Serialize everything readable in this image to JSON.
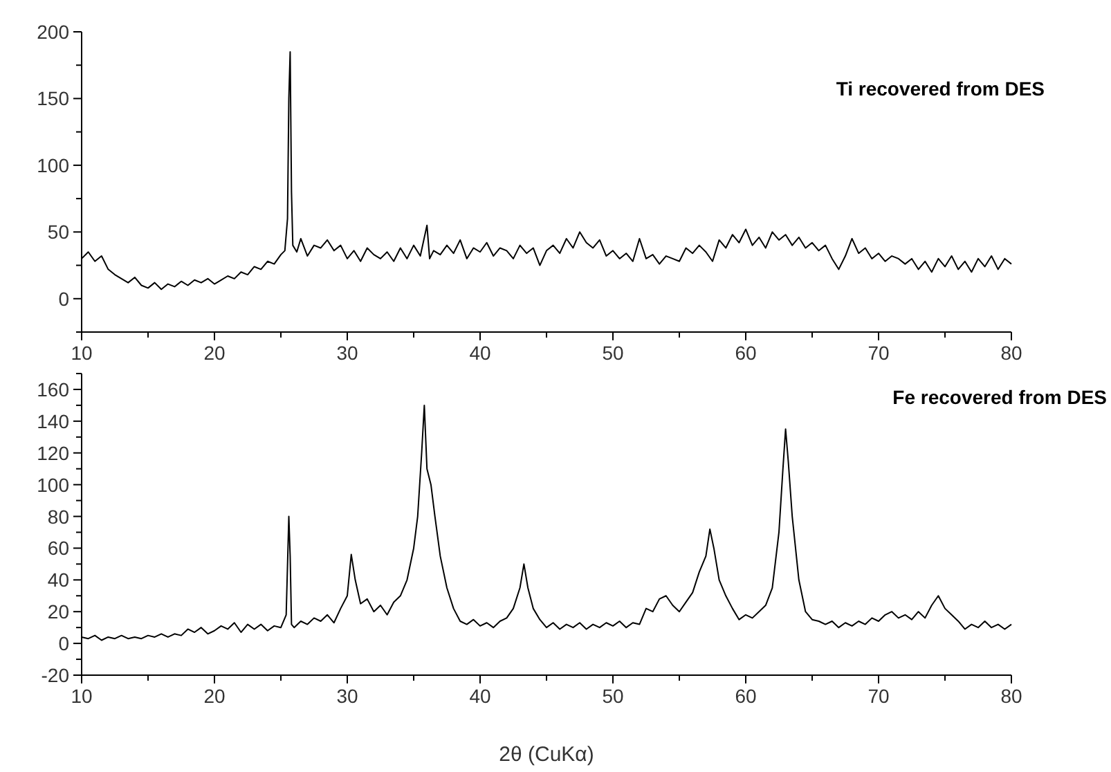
{
  "chart_data": [
    {
      "type": "line",
      "title": "Ti recovered from DES",
      "xlim": [
        10,
        80
      ],
      "ylim": [
        -25,
        200
      ],
      "xticks": [
        10,
        {
          "value": 15,
          "label": null
        },
        20,
        {
          "value": 25,
          "label": null
        },
        30,
        {
          "value": 35,
          "label": null
        },
        40,
        {
          "value": 45,
          "label": null
        },
        50,
        {
          "value": 55,
          "label": null
        },
        60,
        {
          "value": 65,
          "label": null
        },
        70,
        {
          "value": 75,
          "label": null
        },
        80
      ],
      "yticks": [
        {
          "value": -25,
          "label": null
        },
        0,
        {
          "value": 25,
          "label": null
        },
        50,
        {
          "value": 75,
          "label": null
        },
        100,
        {
          "value": 125,
          "label": null
        },
        150,
        {
          "value": 175,
          "label": null
        },
        200
      ],
      "grid": false,
      "series": [
        {
          "color": "#000000",
          "x": [
            10,
            10.5,
            11,
            11.5,
            12,
            12.5,
            13,
            13.5,
            14,
            14.5,
            15,
            15.5,
            16,
            16.5,
            17,
            17.5,
            18,
            18.5,
            19,
            19.5,
            20,
            20.5,
            21,
            21.5,
            22,
            22.5,
            23,
            23.5,
            24,
            24.5,
            25,
            25.3,
            25.5,
            25.6,
            25.7,
            25.8,
            25.9,
            26.2,
            26.5,
            27,
            27.5,
            28,
            28.5,
            29,
            29.5,
            30,
            30.5,
            31,
            31.5,
            32,
            32.5,
            33,
            33.5,
            34,
            34.5,
            35,
            35.5,
            36,
            36.2,
            36.5,
            37,
            37.5,
            38,
            38.5,
            39,
            39.5,
            40,
            40.5,
            41,
            41.5,
            42,
            42.5,
            43,
            43.5,
            44,
            44.5,
            45,
            45.5,
            46,
            46.5,
            47,
            47.5,
            48,
            48.5,
            49,
            49.5,
            50,
            50.5,
            51,
            51.5,
            52,
            52.5,
            53,
            53.5,
            54,
            54.5,
            55,
            55.5,
            56,
            56.5,
            57,
            57.5,
            58,
            58.5,
            59,
            59.5,
            60,
            60.5,
            61,
            61.5,
            62,
            62.5,
            63,
            63.5,
            64,
            64.5,
            65,
            65.5,
            66,
            66.5,
            67,
            67.5,
            68,
            68.5,
            69,
            69.5,
            70,
            70.5,
            71,
            71.5,
            72,
            72.5,
            73,
            73.5,
            74,
            74.5,
            75,
            75.5,
            76,
            76.5,
            77,
            77.5,
            78,
            78.5,
            79,
            79.5,
            80
          ],
          "values": [
            30,
            35,
            28,
            32,
            22,
            18,
            15,
            12,
            16,
            10,
            8,
            12,
            7,
            11,
            9,
            13,
            10,
            14,
            12,
            15,
            11,
            14,
            17,
            15,
            20,
            18,
            24,
            22,
            28,
            26,
            33,
            36,
            60,
            150,
            185,
            80,
            40,
            35,
            45,
            32,
            40,
            38,
            44,
            36,
            40,
            30,
            36,
            28,
            38,
            33,
            30,
            35,
            28,
            38,
            30,
            40,
            32,
            55,
            30,
            36,
            33,
            40,
            34,
            44,
            30,
            38,
            35,
            42,
            32,
            38,
            36,
            30,
            40,
            34,
            38,
            25,
            36,
            40,
            34,
            45,
            38,
            50,
            42,
            38,
            44,
            32,
            36,
            30,
            34,
            28,
            45,
            30,
            33,
            26,
            32,
            30,
            28,
            38,
            34,
            40,
            35,
            28,
            44,
            38,
            48,
            42,
            52,
            40,
            46,
            38,
            50,
            44,
            48,
            40,
            46,
            38,
            42,
            36,
            40,
            30,
            22,
            32,
            45,
            34,
            38,
            30,
            34,
            28,
            32,
            30,
            26,
            30,
            22,
            28,
            20,
            30,
            24,
            32,
            22,
            28,
            20,
            30,
            24,
            32,
            22,
            30,
            26
          ]
        }
      ]
    },
    {
      "type": "line",
      "title": "Fe recovered from DES",
      "xlabel": "2θ (CuKα)",
      "xlim": [
        10,
        80
      ],
      "ylim": [
        -20,
        170
      ],
      "xticks": [
        10,
        {
          "value": 15,
          "label": null
        },
        20,
        {
          "value": 25,
          "label": null
        },
        30,
        {
          "value": 35,
          "label": null
        },
        40,
        {
          "value": 45,
          "label": null
        },
        50,
        {
          "value": 55,
          "label": null
        },
        60,
        {
          "value": 65,
          "label": null
        },
        70,
        {
          "value": 75,
          "label": null
        },
        80
      ],
      "yticks": [
        -20,
        {
          "value": -10,
          "label": null
        },
        0,
        {
          "value": 10,
          "label": null
        },
        20,
        {
          "value": 30,
          "label": null
        },
        40,
        {
          "value": 50,
          "label": null
        },
        60,
        {
          "value": 70,
          "label": null
        },
        80,
        {
          "value": 90,
          "label": null
        },
        100,
        {
          "value": 110,
          "label": null
        },
        120,
        {
          "value": 130,
          "label": null
        },
        140,
        {
          "value": 150,
          "label": null
        },
        160,
        {
          "value": 170,
          "label": null
        }
      ],
      "grid": false,
      "series": [
        {
          "color": "#000000",
          "x": [
            10,
            10.5,
            11,
            11.5,
            12,
            12.5,
            13,
            13.5,
            14,
            14.5,
            15,
            15.5,
            16,
            16.5,
            17,
            17.5,
            18,
            18.5,
            19,
            19.5,
            20,
            20.5,
            21,
            21.5,
            22,
            22.5,
            23,
            23.5,
            24,
            24.5,
            25,
            25.4,
            25.6,
            25.7,
            25.8,
            26,
            26.5,
            27,
            27.5,
            28,
            28.5,
            29,
            29.5,
            30,
            30.3,
            30.6,
            31,
            31.5,
            32,
            32.5,
            33,
            33.5,
            34,
            34.5,
            35,
            35.3,
            35.6,
            35.8,
            36,
            36.3,
            36.6,
            37,
            37.5,
            38,
            38.5,
            39,
            39.5,
            40,
            40.5,
            41,
            41.5,
            42,
            42.5,
            43,
            43.3,
            43.6,
            44,
            44.5,
            45,
            45.5,
            46,
            46.5,
            47,
            47.5,
            48,
            48.5,
            49,
            49.5,
            50,
            50.5,
            51,
            51.5,
            52,
            52.5,
            53,
            53.5,
            54,
            54.5,
            55,
            55.5,
            56,
            56.5,
            57,
            57.3,
            57.6,
            58,
            58.5,
            59,
            59.5,
            60,
            60.5,
            61,
            61.5,
            62,
            62.5,
            62.8,
            63,
            63.2,
            63.5,
            64,
            64.5,
            65,
            65.5,
            66,
            66.5,
            67,
            67.5,
            68,
            68.5,
            69,
            69.5,
            70,
            70.5,
            71,
            71.5,
            72,
            72.5,
            73,
            73.5,
            74,
            74.5,
            75,
            75.5,
            76,
            76.5,
            77,
            77.5,
            78,
            78.5,
            79,
            79.5,
            80
          ],
          "values": [
            4,
            3,
            5,
            2,
            4,
            3,
            5,
            3,
            4,
            3,
            5,
            4,
            6,
            4,
            6,
            5,
            9,
            7,
            10,
            6,
            8,
            11,
            9,
            13,
            7,
            12,
            9,
            12,
            8,
            11,
            10,
            18,
            80,
            55,
            12,
            10,
            14,
            12,
            16,
            14,
            18,
            13,
            22,
            30,
            56,
            40,
            25,
            28,
            20,
            24,
            18,
            26,
            30,
            40,
            60,
            80,
            120,
            150,
            110,
            100,
            80,
            55,
            35,
            22,
            14,
            12,
            15,
            11,
            13,
            10,
            14,
            16,
            22,
            35,
            50,
            35,
            22,
            15,
            10,
            13,
            9,
            12,
            10,
            13,
            9,
            12,
            10,
            13,
            11,
            14,
            10,
            13,
            12,
            22,
            20,
            28,
            30,
            24,
            20,
            26,
            32,
            45,
            55,
            72,
            60,
            40,
            30,
            22,
            15,
            18,
            16,
            20,
            24,
            35,
            70,
            110,
            135,
            115,
            80,
            40,
            20,
            15,
            14,
            12,
            14,
            10,
            13,
            11,
            14,
            12,
            16,
            14,
            18,
            20,
            16,
            18,
            15,
            20,
            16,
            24,
            30,
            22,
            18,
            14,
            9,
            12,
            10,
            14,
            10,
            12,
            9,
            12
          ]
        }
      ]
    }
  ]
}
